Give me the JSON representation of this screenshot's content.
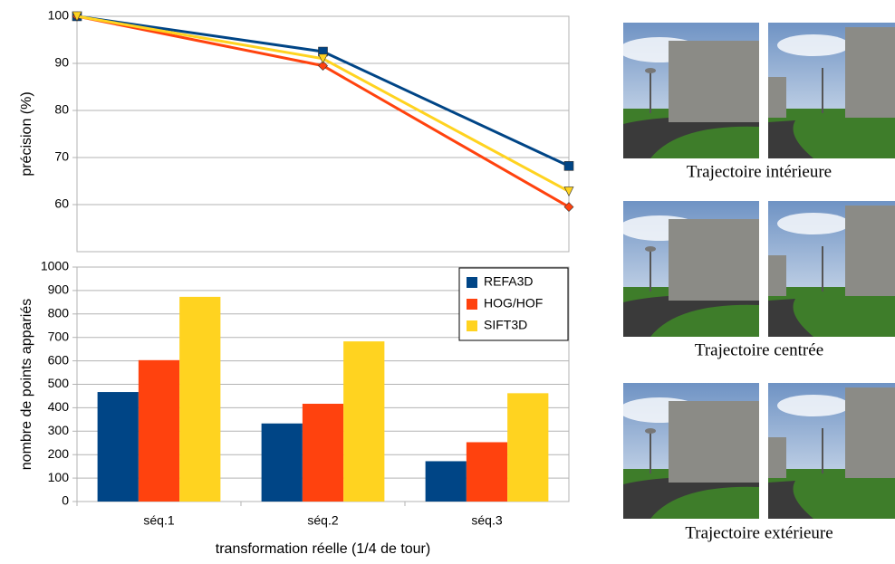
{
  "chart_data": [
    {
      "type": "line",
      "y_label": "précision (%)",
      "series": [
        {
          "color": "#004586",
          "marker": "square",
          "values": [
            100,
            92.5,
            68.2
          ]
        },
        {
          "color": "#ff420e",
          "marker": "diamond",
          "values": [
            100,
            89.5,
            59.5
          ]
        },
        {
          "color": "#ffd320",
          "marker": "triangle",
          "values": [
            100,
            91,
            62.8
          ]
        }
      ],
      "ylim": [
        50,
        100
      ],
      "yticks": [
        60,
        70,
        80,
        90,
        100
      ],
      "grid": true
    },
    {
      "type": "bar",
      "y_label": "nombre de points appariés",
      "x_label": "transformation réelle (1/4 de tour)",
      "categories": [
        "séq.1",
        "séq.2",
        "séq.3"
      ],
      "series": [
        {
          "name": "REFA3D",
          "color": "#004586",
          "values": [
            467,
            333,
            172
          ]
        },
        {
          "name": "HOG/HOF",
          "color": "#ff420e",
          "values": [
            603,
            417,
            253
          ]
        },
        {
          "name": "SIFT3D",
          "color": "#ffd320",
          "values": [
            873,
            683,
            462
          ]
        }
      ],
      "ylim": [
        0,
        1000
      ],
      "yticks": [
        0,
        100,
        200,
        300,
        400,
        500,
        600,
        700,
        800,
        900,
        1000
      ],
      "grid": true,
      "legend": "top-right"
    }
  ],
  "images": {
    "captions": [
      "Trajectoire intérieure",
      "Trajectoire centrée",
      "Trajectoire extérieure"
    ]
  }
}
